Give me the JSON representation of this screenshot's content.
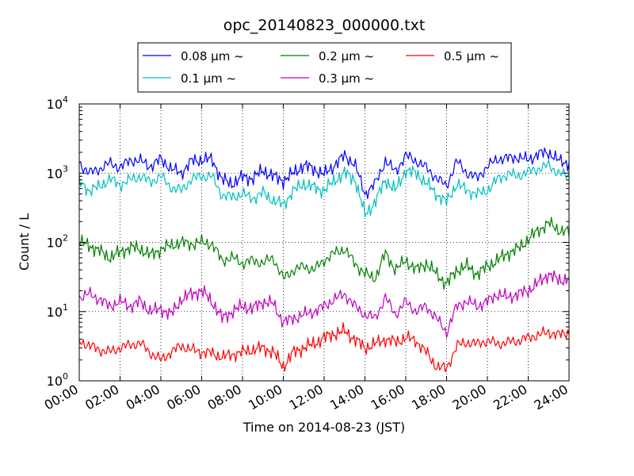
{
  "chart_data": {
    "type": "line",
    "title": "opc_20140823_000000.txt",
    "xlabel": "Time on 2014-08-23 (JST)",
    "ylabel": "Count / L",
    "yscale": "log",
    "ylim": [
      1,
      10000
    ],
    "xlim": [
      0,
      24
    ],
    "x_tick_labels": [
      "00:00",
      "02:00",
      "04:00",
      "06:00",
      "08:00",
      "10:00",
      "12:00",
      "14:00",
      "16:00",
      "18:00",
      "20:00",
      "22:00",
      "24:00"
    ],
    "y_tick_exponents": [
      "0",
      "1",
      "2",
      "3",
      "4"
    ],
    "grid": true,
    "legend_position": "top",
    "series": [
      {
        "name": "0.08 μm ~",
        "color": "#0000ff",
        "x": [
          0,
          0.5,
          1,
          1.5,
          2,
          2.5,
          3,
          3.5,
          4,
          4.5,
          5,
          5.5,
          6,
          6.5,
          7,
          7.5,
          8,
          8.5,
          9,
          9.5,
          10,
          10.5,
          11,
          11.5,
          12,
          12.5,
          13,
          13.5,
          14,
          14.5,
          15,
          15.5,
          16,
          16.5,
          17,
          17.5,
          18,
          18.5,
          19,
          19.5,
          20,
          20.5,
          21,
          21.5,
          22,
          22.5,
          23,
          23.5,
          24
        ],
        "values": [
          1400,
          1000,
          1150,
          1400,
          1200,
          1550,
          1500,
          1250,
          1600,
          1150,
          1000,
          1500,
          1550,
          1600,
          800,
          700,
          880,
          840,
          1100,
          900,
          780,
          1000,
          1300,
          1150,
          950,
          1300,
          1800,
          1350,
          500,
          700,
          1500,
          1050,
          1800,
          1500,
          1200,
          850,
          650,
          1500,
          1000,
          850,
          1250,
          1600,
          1650,
          1700,
          1550,
          1900,
          2000,
          1500,
          1400
        ]
      },
      {
        "name": "0.1 μm ~",
        "color": "#00bfbf",
        "x": [
          0,
          0.5,
          1,
          1.5,
          2,
          2.5,
          3,
          3.5,
          4,
          4.5,
          5,
          5.5,
          6,
          6.5,
          7,
          7.5,
          8,
          8.5,
          9,
          9.5,
          10,
          10.5,
          11,
          11.5,
          12,
          12.5,
          13,
          13.5,
          14,
          14.5,
          15,
          15.5,
          16,
          16.5,
          17,
          17.5,
          18,
          18.5,
          19,
          19.5,
          20,
          20.5,
          21,
          21.5,
          22,
          22.5,
          23,
          23.5,
          24
        ],
        "values": [
          750,
          560,
          640,
          820,
          680,
          800,
          900,
          750,
          900,
          620,
          560,
          820,
          900,
          900,
          480,
          450,
          500,
          430,
          520,
          400,
          350,
          560,
          700,
          620,
          560,
          780,
          1000,
          830,
          250,
          380,
          800,
          560,
          1100,
          1000,
          720,
          500,
          380,
          700,
          560,
          500,
          560,
          820,
          980,
          900,
          1050,
          1150,
          1300,
          1000,
          900
        ]
      },
      {
        "name": "0.2 μm ~",
        "color": "#008000",
        "x": [
          0,
          0.5,
          1,
          1.5,
          2,
          2.5,
          3,
          3.5,
          4,
          4.5,
          5,
          5.5,
          6,
          6.5,
          7,
          7.5,
          8,
          8.5,
          9,
          9.5,
          10,
          10.5,
          11,
          11.5,
          12,
          12.5,
          13,
          13.5,
          14,
          14.5,
          15,
          15.5,
          16,
          16.5,
          17,
          17.5,
          18,
          18.5,
          19,
          19.5,
          20,
          20.5,
          21,
          21.5,
          22,
          22.5,
          23,
          23.5,
          24
        ],
        "values": [
          100,
          90,
          75,
          60,
          72,
          85,
          80,
          65,
          80,
          90,
          100,
          95,
          100,
          95,
          55,
          60,
          50,
          55,
          50,
          60,
          30,
          40,
          45,
          40,
          55,
          70,
          80,
          50,
          35,
          30,
          70,
          40,
          55,
          40,
          50,
          35,
          25,
          40,
          45,
          35,
          45,
          55,
          70,
          80,
          110,
          150,
          190,
          150,
          140
        ]
      },
      {
        "name": "0.3 μm ~",
        "color": "#bf00bf",
        "x": [
          0,
          0.5,
          1,
          1.5,
          2,
          2.5,
          3,
          3.5,
          4,
          4.5,
          5,
          5.5,
          6,
          6.5,
          7,
          7.5,
          8,
          8.5,
          9,
          9.5,
          10,
          10.5,
          11,
          11.5,
          12,
          12.5,
          13,
          13.5,
          14,
          14.5,
          15,
          15.5,
          16,
          16.5,
          17,
          17.5,
          18,
          18.5,
          19,
          19.5,
          20,
          20.5,
          21,
          21.5,
          22,
          22.5,
          23,
          23.5,
          24
        ],
        "values": [
          16,
          18,
          15,
          12,
          14,
          12,
          14,
          10,
          11,
          9,
          15,
          18,
          20,
          14,
          8,
          10,
          12,
          11,
          14,
          13,
          7,
          8,
          9,
          10,
          12,
          15,
          18,
          12,
          9,
          8,
          16,
          9,
          14,
          10,
          12,
          8,
          5,
          12,
          14,
          12,
          14,
          18,
          16,
          18,
          20,
          26,
          35,
          28,
          30
        ]
      },
      {
        "name": "0.5 μm ~",
        "color": "#ff0000",
        "x": [
          0,
          0.5,
          1,
          1.5,
          2,
          2.5,
          3,
          3.5,
          4,
          4.5,
          5,
          5.5,
          6,
          6.5,
          7,
          7.5,
          8,
          8.5,
          9,
          9.5,
          10,
          10.5,
          11,
          11.5,
          12,
          12.5,
          13,
          13.5,
          14,
          14.5,
          15,
          15.5,
          16,
          16.5,
          17,
          17.5,
          18,
          18.5,
          19,
          19.5,
          20,
          20.5,
          21,
          21.5,
          22,
          22.5,
          23,
          23.5,
          24
        ],
        "values": [
          3.8,
          3.2,
          2.8,
          2.6,
          3.0,
          3.3,
          3.5,
          2.5,
          2.0,
          2.6,
          3.2,
          2.8,
          2.6,
          2.5,
          2.2,
          2.4,
          2.6,
          2.8,
          3.0,
          2.6,
          1.6,
          2.6,
          3.0,
          3.4,
          4.2,
          4.8,
          5.2,
          4.0,
          3.0,
          3.4,
          4.0,
          3.6,
          4.2,
          3.8,
          2.6,
          1.6,
          1.5,
          3.2,
          3.6,
          3.4,
          3.8,
          3.4,
          3.6,
          3.8,
          4.2,
          4.6,
          5.0,
          4.6,
          5.0
        ]
      }
    ]
  }
}
